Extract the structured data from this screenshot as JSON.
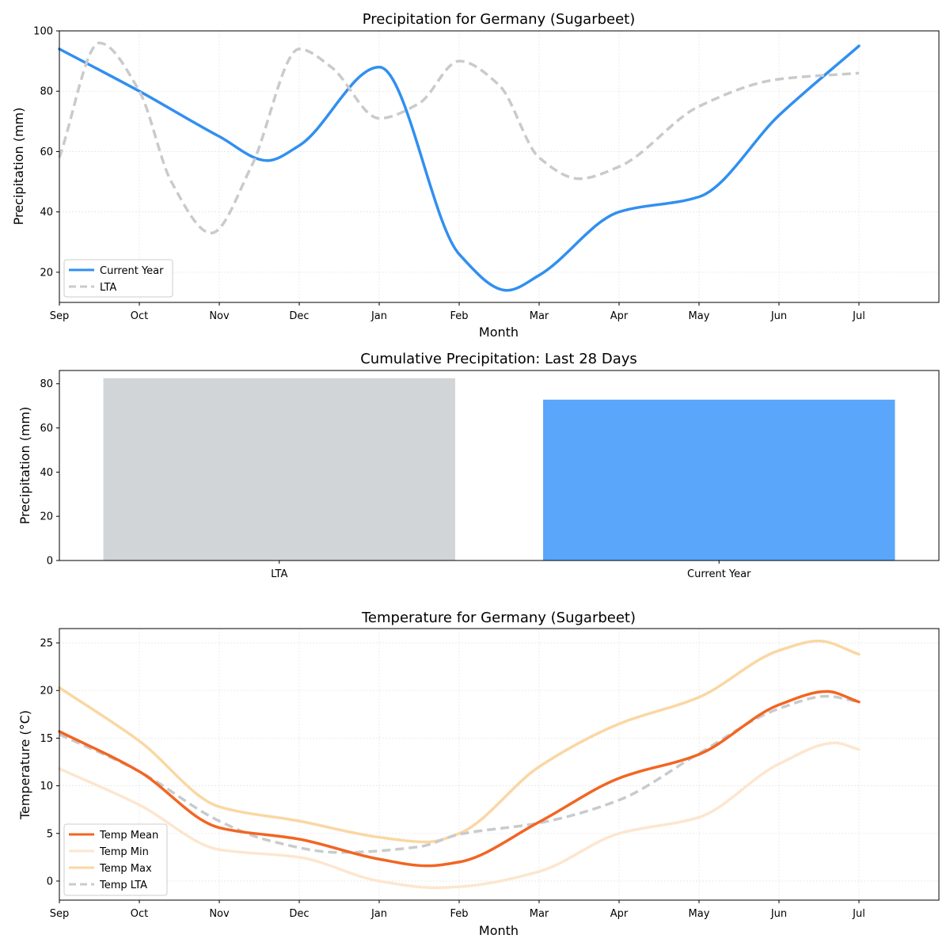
{
  "chart_data": [
    {
      "type": "line",
      "title": "Precipitation for Germany (Sugarbeet)",
      "xlabel": "Month",
      "ylabel": "Precipitation (mm)",
      "xlim": [
        0,
        11
      ],
      "ylim": [
        10,
        100
      ],
      "yticks": [
        20,
        40,
        60,
        80,
        100
      ],
      "categories": [
        "Sep",
        "Oct",
        "Nov",
        "Dec",
        "Jan",
        "Feb",
        "Mar",
        "Apr",
        "May",
        "Jun",
        "Jul"
      ],
      "grid": true,
      "legend": "lower-left",
      "series": [
        {
          "name": "Current Year",
          "color": "#318ff0",
          "style": "solid",
          "x": [
            0,
            1,
            2,
            2.6,
            3,
            4,
            5,
            5.6,
            6,
            7,
            8,
            9,
            10
          ],
          "values": [
            94,
            80,
            65,
            57,
            62,
            88,
            26,
            14,
            19,
            40,
            45,
            72,
            95
          ]
        },
        {
          "name": "LTA",
          "color": "#c8cbcd",
          "style": "dashed",
          "x": [
            0,
            0.5,
            1,
            1.4,
            1.9,
            2.4,
            3,
            3.4,
            4,
            4.5,
            5,
            5.5,
            6,
            6.5,
            7,
            8,
            9,
            10
          ],
          "values": [
            58,
            96,
            80,
            50,
            33,
            55,
            94,
            88,
            71,
            76,
            90,
            82,
            58,
            51,
            55,
            75,
            84,
            86
          ]
        }
      ]
    },
    {
      "type": "bar",
      "title": "Cumulative Precipitation: Last 28 Days",
      "ylabel": "Precipitation (mm)",
      "categories": [
        "LTA",
        "Current Year"
      ],
      "values": [
        82.5,
        72.8
      ],
      "colors": [
        "#d1d5d8",
        "#59a6fb"
      ],
      "ylim": [
        0,
        86
      ],
      "yticks": [
        0,
        20,
        40,
        60,
        80
      ]
    },
    {
      "type": "line",
      "title": "Temperature for Germany (Sugarbeet)",
      "xlabel": "Month",
      "ylabel": "Temperature (°C)",
      "xlim": [
        0,
        11
      ],
      "ylim": [
        -2,
        26.5
      ],
      "yticks": [
        0,
        5,
        10,
        15,
        20,
        25
      ],
      "categories": [
        "Sep",
        "Oct",
        "Nov",
        "Dec",
        "Jan",
        "Feb",
        "Mar",
        "Apr",
        "May",
        "Jun",
        "Jul"
      ],
      "grid": true,
      "legend": "lower-left",
      "series": [
        {
          "name": "Temp Mean",
          "color": "#f26522",
          "style": "solid",
          "x": [
            0,
            1,
            2,
            3,
            4,
            4.6,
            5,
            6,
            7,
            8,
            9,
            9.6,
            10
          ],
          "values": [
            15.7,
            11.5,
            5.6,
            4.4,
            2.3,
            1.6,
            2.0,
            6.2,
            10.8,
            13.3,
            18.5,
            19.9,
            18.8
          ]
        },
        {
          "name": "Temp Min",
          "color": "#fde6cf",
          "style": "solid",
          "x": [
            0,
            1,
            2,
            3,
            4,
            4.7,
            5,
            6,
            7,
            8,
            9,
            9.7,
            10
          ],
          "values": [
            11.8,
            8.0,
            3.3,
            2.5,
            0.0,
            -0.7,
            -0.6,
            1.0,
            5.0,
            6.7,
            12.3,
            14.5,
            13.8
          ]
        },
        {
          "name": "Temp Max",
          "color": "#fad7a3",
          "style": "solid",
          "x": [
            0,
            1,
            2,
            3,
            4,
            4.6,
            5,
            6,
            7,
            8,
            9,
            9.5,
            10
          ],
          "values": [
            20.3,
            14.7,
            7.8,
            6.3,
            4.6,
            4.1,
            5.0,
            12.0,
            16.5,
            19.3,
            24.2,
            25.2,
            23.8
          ]
        },
        {
          "name": "Temp LTA",
          "color": "#c8cbcd",
          "style": "dashed",
          "x": [
            0,
            1,
            2,
            2.6,
            3.5,
            4.5,
            5,
            6,
            7,
            8,
            9,
            9.6,
            10
          ],
          "values": [
            15.4,
            11.5,
            6.3,
            4.3,
            3.0,
            3.6,
            4.9,
            6.1,
            8.5,
            13.4,
            18.1,
            19.4,
            18.8
          ]
        }
      ]
    }
  ]
}
